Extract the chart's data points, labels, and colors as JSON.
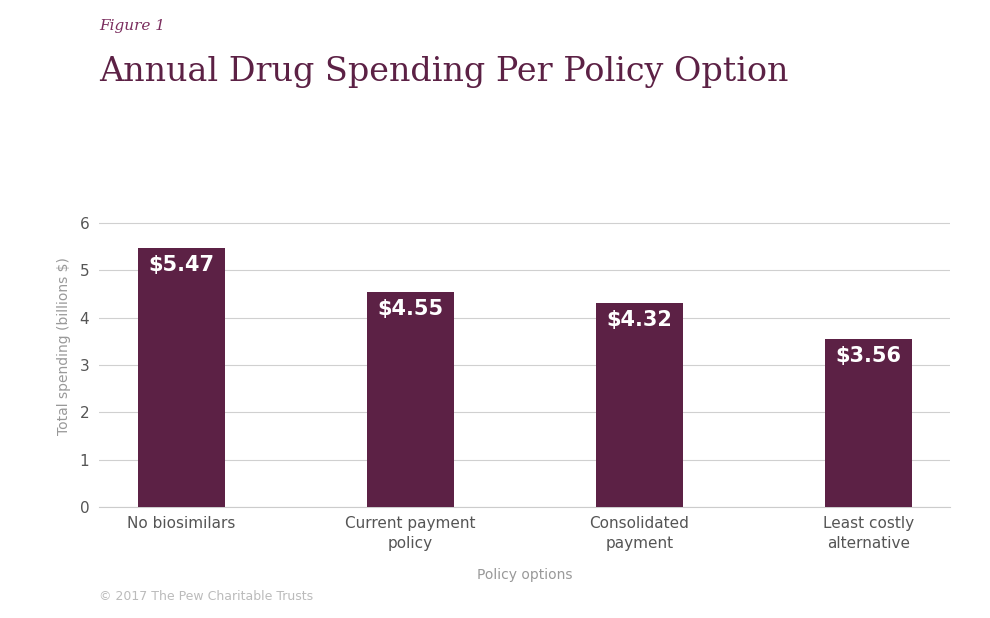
{
  "figure_label": "Figure 1",
  "title": "Annual Drug Spending Per Policy Option",
  "categories": [
    "No biosimilars",
    "Current payment\npolicy",
    "Consolidated\npayment",
    "Least costly\nalternative"
  ],
  "values": [
    5.47,
    4.55,
    4.32,
    3.56
  ],
  "bar_color": "#5c2145",
  "bar_labels": [
    "$5.47",
    "$4.55",
    "$4.32",
    "$3.56"
  ],
  "ylabel": "Total spending (billions $)",
  "xlabel": "Policy options",
  "ylim": [
    0,
    6.8
  ],
  "yticks": [
    0,
    1,
    2,
    3,
    4,
    5,
    6
  ],
  "background_color": "#ffffff",
  "figure_label_color": "#7b2d5e",
  "title_color": "#5c2145",
  "axis_label_color": "#999999",
  "tick_label_color": "#555555",
  "copyright_text": "© 2017 The Pew Charitable Trusts",
  "copyright_color": "#bbbbbb",
  "bar_width": 0.38,
  "label_fontsize": 15,
  "figure_label_fontsize": 11,
  "title_fontsize": 24
}
